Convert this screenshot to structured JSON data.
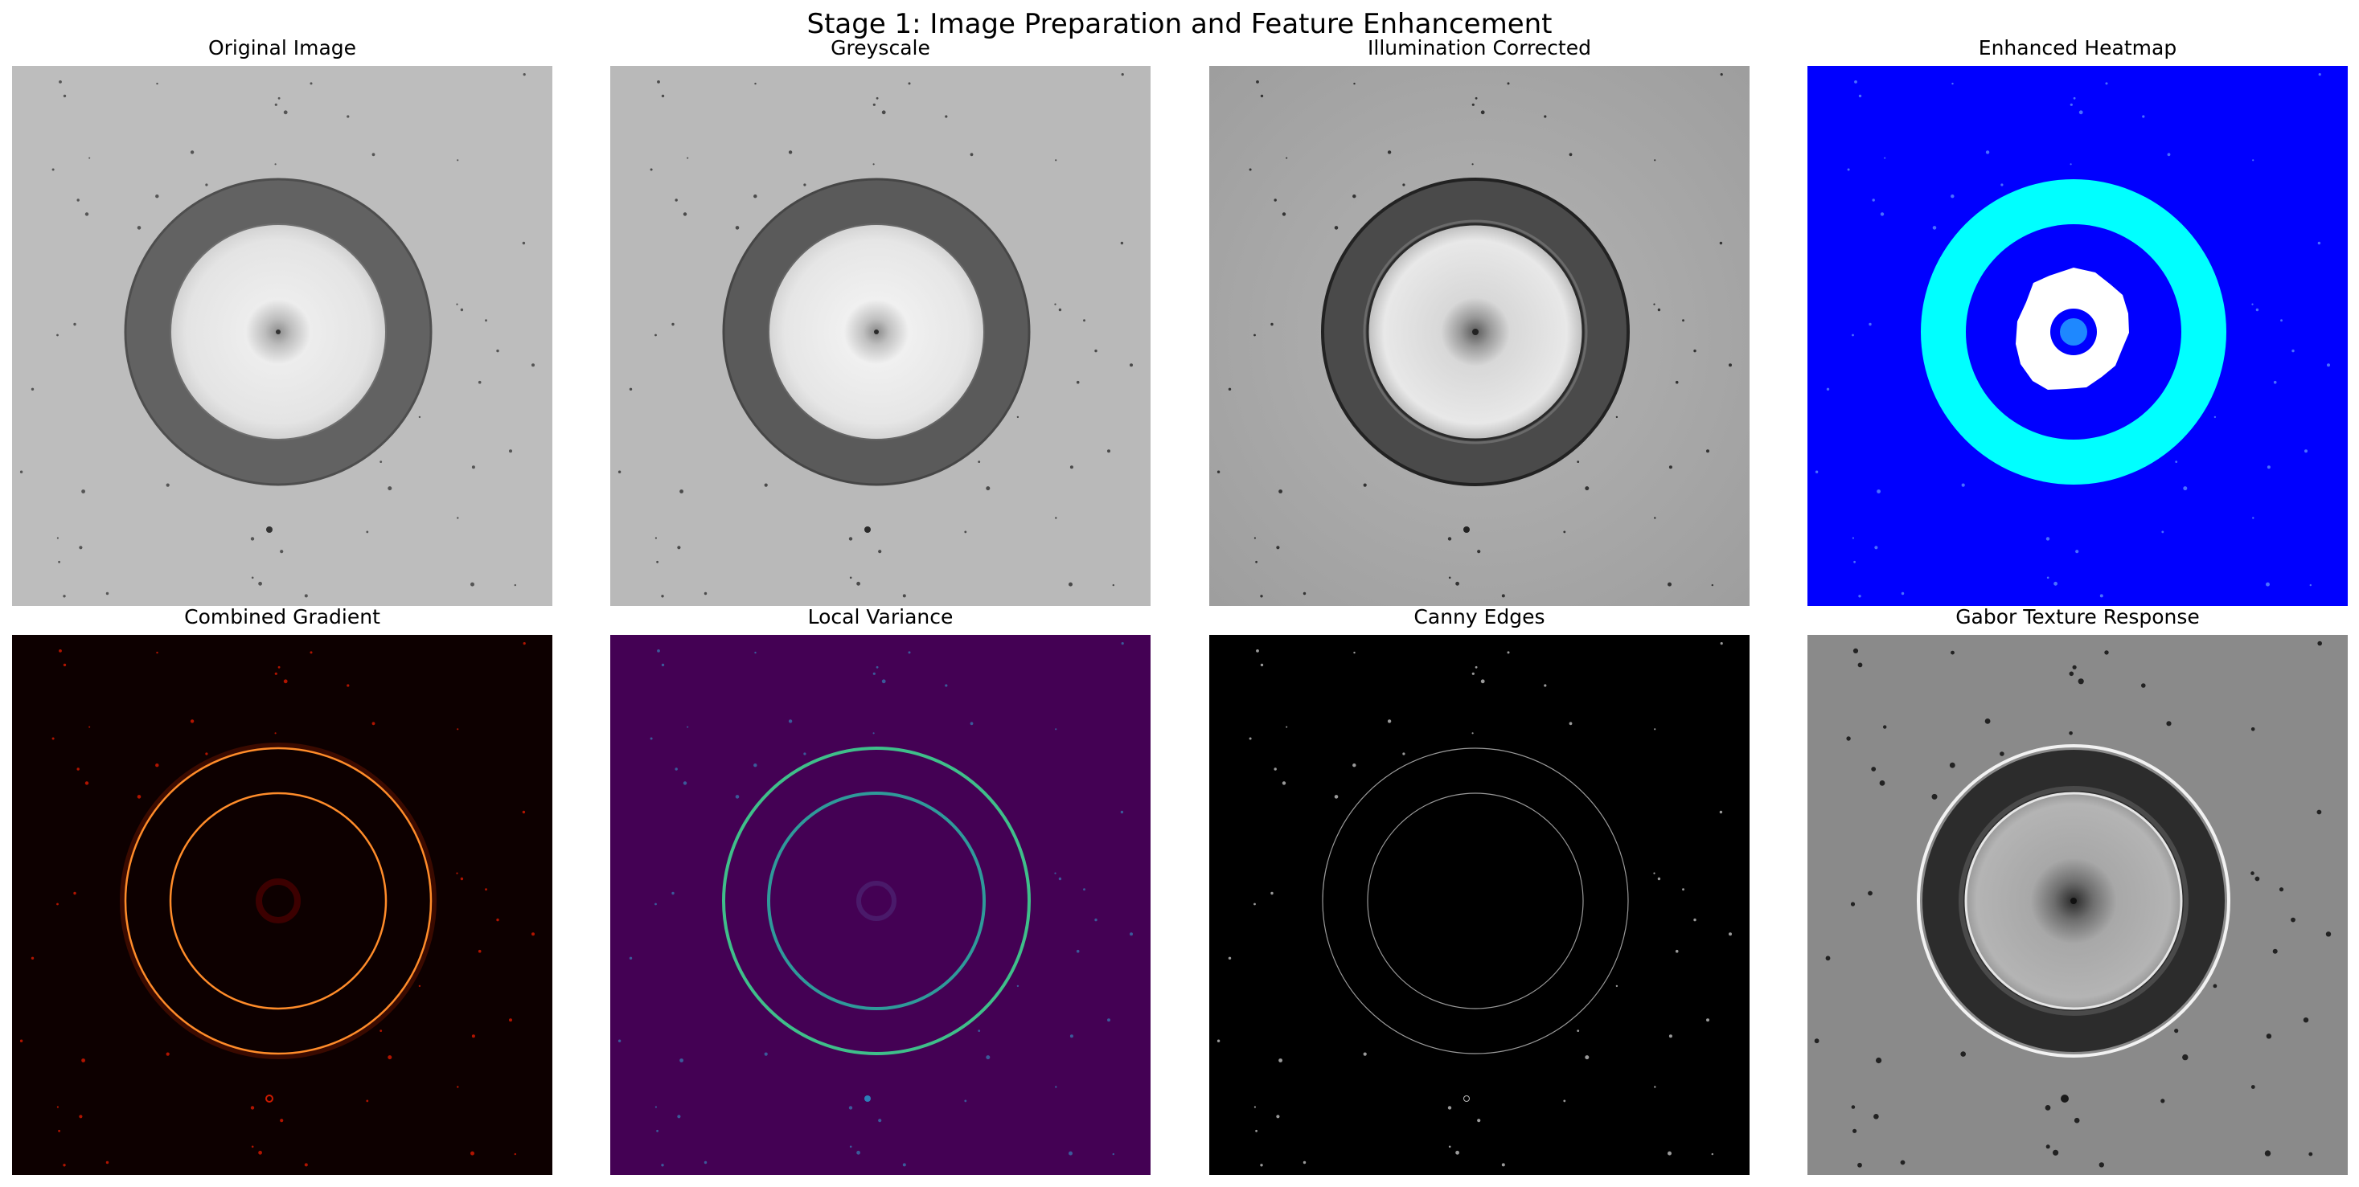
{
  "figure": {
    "title": "Stage 1: Image Preparation and Feature Enhancement"
  },
  "panels": [
    {
      "title": "Original Image",
      "colormap": "grey"
    },
    {
      "title": "Greyscale",
      "colormap": "grey"
    },
    {
      "title": "Illumination Corrected",
      "colormap": "grey"
    },
    {
      "title": "Enhanced Heatmap",
      "colormap": "jet"
    },
    {
      "title": "Combined Gradient",
      "colormap": "hot"
    },
    {
      "title": "Local Variance",
      "colormap": "viridis"
    },
    {
      "title": "Canny Edges",
      "colormap": "grey"
    },
    {
      "title": "Gabor Texture Response",
      "colormap": "grey"
    }
  ],
  "colors": {
    "heatmap_background": "#0000ff",
    "heatmap_ring": "#00ffff",
    "gradient_background": "#0d0000",
    "gradient_ring": "#ff8c2a",
    "variance_background": "#440154",
    "variance_ring": "#35b779"
  }
}
